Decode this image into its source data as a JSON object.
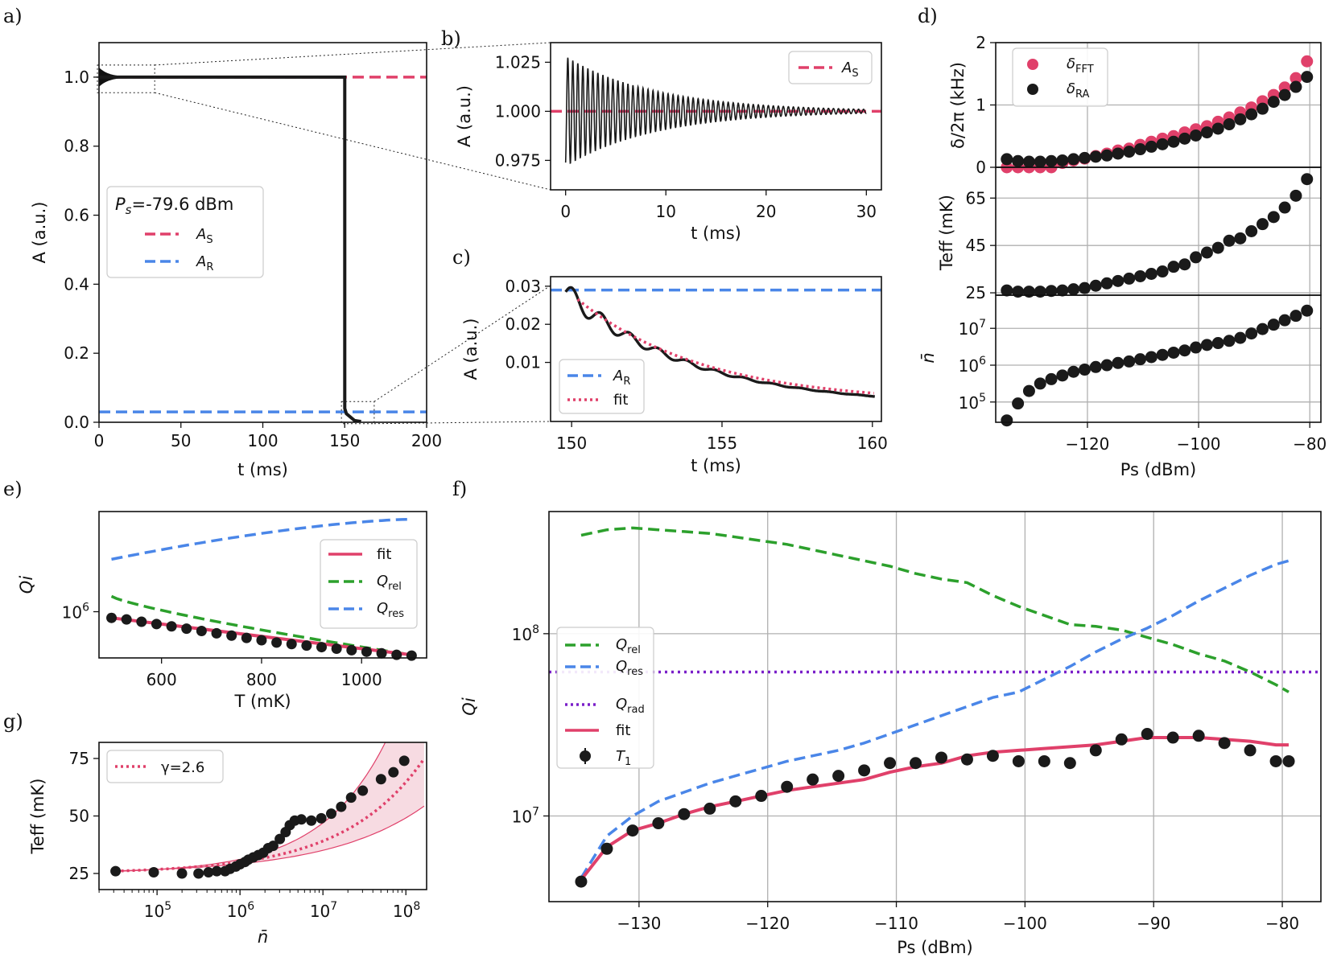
{
  "colors": {
    "AS": "#e0406a",
    "AR": "#4a86e8",
    "rel": "#2ca02c",
    "res": "#4a86e8",
    "rad": "#7a1fc9",
    "fit": "#e0406a",
    "dots": "#1a1a1a",
    "grid": "#b0b0b0",
    "band": "#f7dbe2"
  },
  "chart_data": [
    {
      "id": "a",
      "panel_label": "a)",
      "type": "line",
      "xlabel": "t (ms)",
      "ylabel": "A (a.u.)",
      "xlim": [
        0,
        200
      ],
      "ylim": [
        0,
        1.1
      ],
      "xticks": [
        0,
        50,
        100,
        150,
        200
      ],
      "yticks": [
        0.0,
        0.2,
        0.4,
        0.6,
        0.8,
        1.0
      ],
      "xtick_labels": [
        "0",
        "50",
        "100",
        "150",
        "200"
      ],
      "ytick_labels": [
        "0.0",
        "0.2",
        "0.4",
        "0.6",
        "0.8",
        "1.0"
      ],
      "legend": {
        "title": "Ps=-79.6 dBm",
        "title_sym": "P",
        "title_sub": "s",
        "title_rest": "=-79.6 dBm",
        "entries": [
          {
            "sym": "A",
            "sub": "S",
            "color_key": "AS"
          },
          {
            "sym": "A",
            "sub": "R",
            "color_key": "AR"
          }
        ]
      },
      "series": [
        {
          "name": "A_S",
          "style": "dashed",
          "color_key": "AS",
          "y": 1.0
        },
        {
          "name": "A_R",
          "style": "dashed",
          "color_key": "AR",
          "y": 0.03
        },
        {
          "name": "signal",
          "style": "solid",
          "color_key": "dots",
          "switch_t": 150
        }
      ]
    },
    {
      "id": "b",
      "panel_label": "b)",
      "type": "line",
      "xlabel": "t (ms)",
      "ylabel": "A (a.u.)",
      "xlim": [
        -1.5,
        31.5
      ],
      "ylim": [
        0.96,
        1.035
      ],
      "xticks": [
        0,
        10,
        20,
        30
      ],
      "yticks": [
        0.975,
        1.0,
        1.025
      ],
      "xtick_labels": [
        "0",
        "10",
        "20",
        "30"
      ],
      "ytick_labels": [
        "0.975",
        "1.000",
        "1.025"
      ],
      "legend": {
        "entries": [
          {
            "sym": "A",
            "sub": "S",
            "color_key": "AS"
          }
        ]
      },
      "oscillation": {
        "amplitude": 0.028,
        "decay_ms": 9,
        "period_ms": 0.5,
        "center": 1.0
      }
    },
    {
      "id": "c",
      "panel_label": "c)",
      "type": "line",
      "xlabel": "t (ms)",
      "ylabel": "A (a.u.)",
      "xlim": [
        149.3,
        160.3
      ],
      "ylim": [
        -0.0055,
        0.0325
      ],
      "xticks": [
        150,
        155,
        160
      ],
      "yticks": [
        0.01,
        0.02,
        0.03
      ],
      "xtick_labels": [
        "150",
        "155",
        "160"
      ],
      "ytick_labels": [
        "0.01",
        "0.02",
        "0.03"
      ],
      "legend": {
        "entries": [
          {
            "sym": "A",
            "sub": "R",
            "color_key": "AR"
          },
          {
            "text": "fit",
            "color_key": "fit"
          }
        ]
      },
      "A_R": 0.029
    },
    {
      "id": "d",
      "panel_label": "d)",
      "type": "scatter",
      "xlabel": "Ps (dBm)",
      "xlim": [
        -136.5,
        -78
      ],
      "xticks": [
        -120,
        -100,
        -80
      ],
      "xtick_labels": [
        "−120",
        "−100",
        "−80"
      ],
      "Ps": [
        -134.5,
        -132.5,
        -130.5,
        -128.5,
        -126.5,
        -124.5,
        -122.5,
        -120.5,
        -118.5,
        -116.5,
        -114.5,
        -112.5,
        -110.5,
        -108.5,
        -106.5,
        -104.5,
        -102.5,
        -100.5,
        -98.5,
        -96.5,
        -94.5,
        -92.5,
        -90.5,
        -88.5,
        -86.5,
        -84.5,
        -82.5,
        -80.5
      ],
      "top": {
        "ylabel": "δ/2π (kHz)",
        "ylim": [
          0,
          2
        ],
        "yticks": [
          0,
          1,
          2
        ],
        "ytick_labels": [
          "0",
          "1",
          "2"
        ],
        "delta_FFT": [
          0.0,
          0.0,
          0.0,
          0.0,
          0.0,
          0.07,
          0.11,
          0.14,
          0.18,
          0.22,
          0.27,
          0.3,
          0.36,
          0.41,
          0.46,
          0.5,
          0.56,
          0.61,
          0.66,
          0.73,
          0.8,
          0.88,
          0.96,
          1.06,
          1.16,
          1.28,
          1.43,
          1.7
        ],
        "delta_RA": [
          0.13,
          0.1,
          0.09,
          0.09,
          0.1,
          0.11,
          0.13,
          0.15,
          0.17,
          0.19,
          0.22,
          0.25,
          0.29,
          0.33,
          0.37,
          0.41,
          0.46,
          0.51,
          0.56,
          0.62,
          0.69,
          0.77,
          0.85,
          0.94,
          1.05,
          1.16,
          1.29,
          1.45
        ],
        "legend": [
          {
            "label": "δFFT",
            "sym": "δ",
            "sub": "FFT",
            "color_key": "AS"
          },
          {
            "label": "δRA",
            "sym": "δ",
            "sub": "RA",
            "color_key": "dots"
          }
        ]
      },
      "mid": {
        "ylabel": "Teff (mK)",
        "ylim": [
          24,
          78
        ],
        "yticks": [
          25,
          45,
          65
        ],
        "ytick_labels": [
          "25",
          "45",
          "65"
        ],
        "T_eff": [
          26,
          25.5,
          25.5,
          25.5,
          25.8,
          26,
          26.5,
          27,
          28,
          29,
          30,
          31,
          32,
          33,
          34,
          36,
          37,
          40,
          42,
          44,
          47,
          48,
          51,
          54,
          57,
          61,
          66,
          73
        ]
      },
      "bot": {
        "ylabel": "n̄",
        "log": true,
        "ylim_log10": [
          4.45,
          7.9
        ],
        "yticks_log10": [
          5,
          6,
          7
        ],
        "ytick_labels": [
          {
            "base": "10",
            "exp": "5"
          },
          {
            "base": "10",
            "exp": "6"
          },
          {
            "base": "10",
            "exp": "7"
          }
        ],
        "n_log10": [
          4.5,
          4.96,
          5.3,
          5.5,
          5.62,
          5.72,
          5.82,
          5.88,
          5.95,
          6.0,
          6.06,
          6.1,
          6.16,
          6.22,
          6.28,
          6.34,
          6.4,
          6.48,
          6.55,
          6.6,
          6.66,
          6.74,
          6.86,
          6.98,
          7.1,
          7.22,
          7.34,
          7.48
        ]
      }
    },
    {
      "id": "e",
      "panel_label": "e)",
      "type": "line",
      "xlabel": "T (mK)",
      "ylabel": "Qi",
      "xlim": [
        475,
        1130
      ],
      "ylim_log10": [
        5.7,
        6.65
      ],
      "xticks": [
        600,
        800,
        1000
      ],
      "xtick_labels": [
        "600",
        "800",
        "1000"
      ],
      "yticks_log10": [
        6
      ],
      "ytick_labels": [
        {
          "base": "10",
          "exp": "6"
        }
      ],
      "legend": [
        {
          "text": "fit",
          "style": "solid",
          "color_key": "fit"
        },
        {
          "sym": "Q",
          "sub": "rel",
          "style": "dashed",
          "color_key": "rel"
        },
        {
          "sym": "Q",
          "sub": "res",
          "style": "dashed",
          "color_key": "res"
        }
      ],
      "T": [
        500,
        530,
        560,
        590,
        620,
        650,
        680,
        710,
        740,
        770,
        800,
        830,
        860,
        890,
        920,
        950,
        980,
        1010,
        1040,
        1070,
        1100
      ],
      "Qi_points_log10": [
        5.96,
        5.95,
        5.935,
        5.92,
        5.905,
        5.89,
        5.875,
        5.86,
        5.845,
        5.83,
        5.815,
        5.8,
        5.79,
        5.78,
        5.77,
        5.76,
        5.75,
        5.74,
        5.73,
        5.72,
        5.715
      ],
      "fit_log10": [
        5.96,
        5.72
      ],
      "Q_rel_log10": [
        6.1,
        5.72
      ],
      "Q_res_log10": [
        6.34,
        6.6
      ]
    },
    {
      "id": "f",
      "panel_label": "f)",
      "type": "line",
      "xlabel": "Ps (dBm)",
      "ylabel": "Qi",
      "xlim": [
        -137,
        -77
      ],
      "ylim_log10": [
        6.53,
        8.67
      ],
      "xticks": [
        -130,
        -120,
        -110,
        -100,
        -90,
        -80
      ],
      "xtick_labels": [
        "−130",
        "−120",
        "−110",
        "−100",
        "−90",
        "−80"
      ],
      "yticks_log10": [
        7,
        8
      ],
      "ytick_labels": [
        {
          "base": "10",
          "exp": "7"
        },
        {
          "base": "10",
          "exp": "8"
        }
      ],
      "legend": [
        {
          "sym": "Q",
          "sub": "rel",
          "style": "dashed",
          "color_key": "rel"
        },
        {
          "sym": "Q",
          "sub": "res",
          "style": "dashed",
          "color_key": "res"
        },
        {
          "sym": "Q",
          "sub": "rad",
          "style": "dotted",
          "color_key": "rad"
        },
        {
          "text": "fit",
          "style": "solid",
          "color_key": "fit"
        },
        {
          "sym": "T",
          "sub": "1",
          "style": "errorbar",
          "color_key": "dots"
        }
      ],
      "Ps": [
        -134.5,
        -132.5,
        -130.5,
        -128.5,
        -126.5,
        -124.5,
        -122.5,
        -120.5,
        -118.5,
        -116.5,
        -114.5,
        -112.5,
        -110.5,
        -108.5,
        -106.5,
        -104.5,
        -102.5,
        -100.5,
        -98.5,
        -96.5,
        -94.5,
        -92.5,
        -90.5,
        -88.5,
        -86.5,
        -84.5,
        -82.5,
        -80.5,
        -79.5
      ],
      "T1_log10": [
        6.64,
        6.82,
        6.92,
        6.96,
        7.01,
        7.04,
        7.08,
        7.11,
        7.16,
        7.2,
        7.22,
        7.25,
        7.29,
        7.29,
        7.32,
        7.31,
        7.33,
        7.3,
        7.3,
        7.29,
        7.36,
        7.42,
        7.45,
        7.43,
        7.44,
        7.4,
        7.36,
        7.3,
        7.3
      ],
      "fit_log10": [
        6.65,
        6.83,
        6.92,
        6.96,
        7.01,
        7.05,
        7.08,
        7.11,
        7.14,
        7.16,
        7.18,
        7.2,
        7.24,
        7.27,
        7.29,
        7.33,
        7.35,
        7.36,
        7.37,
        7.38,
        7.39,
        7.41,
        7.43,
        7.43,
        7.43,
        7.42,
        7.41,
        7.39,
        7.39
      ],
      "Q_rel_log10": [
        8.54,
        8.57,
        8.58,
        8.57,
        8.56,
        8.55,
        8.53,
        8.51,
        8.49,
        8.46,
        8.43,
        8.4,
        8.37,
        8.33,
        8.3,
        8.28,
        8.21,
        8.15,
        8.1,
        8.05,
        8.04,
        8.02,
        7.98,
        7.94,
        7.89,
        7.85,
        7.79,
        7.72,
        7.68
      ],
      "Q_res_log10": [
        6.66,
        6.89,
        7.0,
        7.08,
        7.13,
        7.18,
        7.22,
        7.26,
        7.3,
        7.33,
        7.36,
        7.4,
        7.45,
        7.5,
        7.55,
        7.6,
        7.65,
        7.68,
        7.75,
        7.82,
        7.9,
        7.97,
        8.03,
        8.1,
        8.18,
        8.25,
        8.32,
        8.38,
        8.4
      ],
      "Q_rad_log10": 7.79
    },
    {
      "id": "g",
      "panel_label": "g)",
      "type": "scatter",
      "xlabel": "n̄",
      "ylabel": "Teff (mK)",
      "xlim_log10": [
        4.3,
        8.25
      ],
      "ylim": [
        18,
        82
      ],
      "xticks_log10": [
        5,
        6,
        7,
        8
      ],
      "xtick_labels": [
        {
          "base": "10",
          "exp": "5"
        },
        {
          "base": "10",
          "exp": "6"
        },
        {
          "base": "10",
          "exp": "7"
        },
        {
          "base": "10",
          "exp": "8"
        }
      ],
      "yticks": [
        25,
        50,
        75
      ],
      "ytick_labels": [
        "25",
        "50",
        "75"
      ],
      "legend": [
        {
          "text": "γ=2.6",
          "style": "dotted",
          "color_key": "fit"
        }
      ],
      "n_log10": [
        4.5,
        4.96,
        5.3,
        5.5,
        5.62,
        5.72,
        5.82,
        5.88,
        5.95,
        6.0,
        6.06,
        6.1,
        6.16,
        6.22,
        6.28,
        6.34,
        6.4,
        6.48,
        6.55,
        6.6,
        6.66,
        6.74,
        6.86,
        6.98,
        7.1,
        7.22,
        7.34,
        7.48,
        7.7,
        7.85,
        7.98
      ],
      "T_eff": [
        26,
        25.5,
        25,
        25,
        25.5,
        26,
        26,
        27,
        28,
        29,
        30,
        31,
        32,
        33,
        34,
        36,
        37,
        40,
        43,
        46,
        48,
        48.5,
        48,
        49,
        51,
        54,
        58,
        61,
        66,
        69,
        74
      ],
      "gamma": 2.6
    }
  ]
}
